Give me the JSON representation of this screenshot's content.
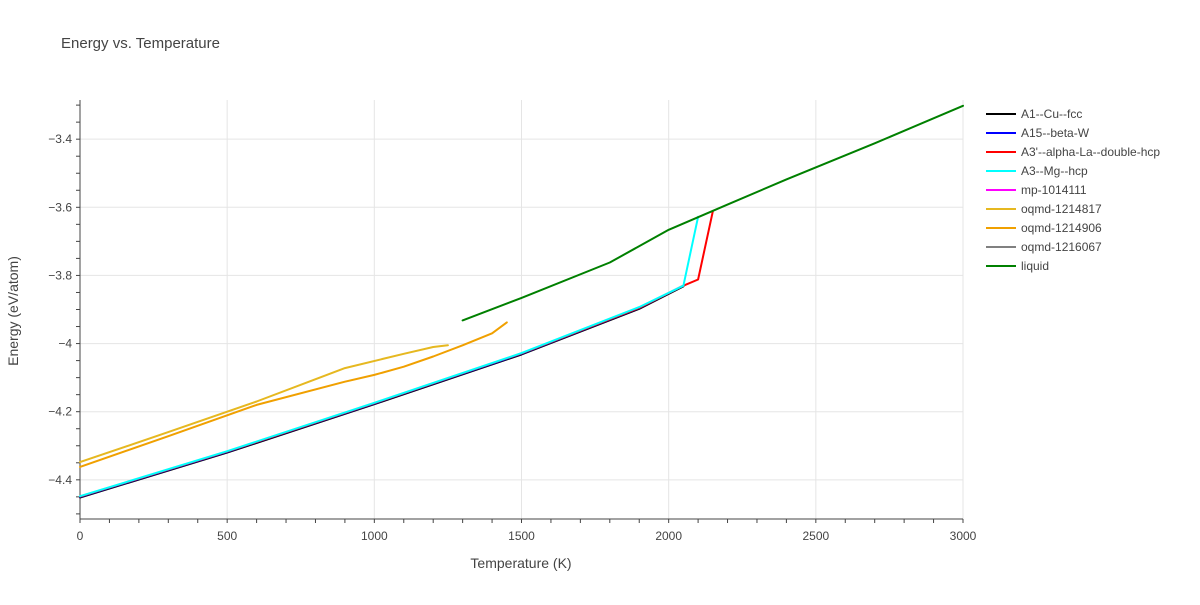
{
  "chart_data": {
    "type": "line",
    "title": "Energy vs. Temperature",
    "xlabel": "Temperature (K)",
    "ylabel": "Energy (eV/atom)",
    "xlim": [
      0,
      3000
    ],
    "ylim": [
      -4.515,
      -3.285
    ],
    "x_ticks": [
      0,
      500,
      1000,
      1500,
      2000,
      2500,
      3000
    ],
    "y_ticks": [
      -4.4,
      -4.2,
      -4,
      -3.8,
      -3.6,
      -3.4
    ],
    "x_tick_labels": [
      "0",
      "500",
      "1000",
      "1500",
      "2000",
      "2500",
      "3000"
    ],
    "y_tick_labels": [
      "−4.4",
      "−4.2",
      "−4",
      "−3.8",
      "−3.6",
      "−3.4"
    ],
    "grid": true,
    "legend_position": "right",
    "series": [
      {
        "name": "A1--Cu--fcc",
        "color": "#000000",
        "x": [
          0,
          500,
          1000,
          1500,
          1900,
          2050
        ],
        "y": [
          -4.452,
          -4.32,
          -4.178,
          -4.032,
          -3.898,
          -3.832
        ]
      },
      {
        "name": "A15--beta-W",
        "color": "#0000ff",
        "x": [
          0,
          500,
          1000,
          1500,
          1900,
          2050
        ],
        "y": [
          -4.45,
          -4.318,
          -4.176,
          -4.03,
          -3.896,
          -3.83
        ]
      },
      {
        "name": "A3'--alpha-La--double-hcp",
        "color": "#ff0000",
        "x": [
          0,
          500,
          1000,
          1500,
          1900,
          2050,
          2100,
          2150
        ],
        "y": [
          -4.449,
          -4.317,
          -4.175,
          -4.029,
          -3.895,
          -3.83,
          -3.812,
          -3.612
        ]
      },
      {
        "name": "A3--Mg--hcp",
        "color": "#00ffff",
        "x": [
          0,
          500,
          1000,
          1500,
          1900,
          2050,
          2100
        ],
        "y": [
          -4.448,
          -4.316,
          -4.174,
          -4.028,
          -3.893,
          -3.83,
          -3.628
        ]
      },
      {
        "name": "mp-1014111",
        "color": "#ff00ff",
        "x": [],
        "y": []
      },
      {
        "name": "oqmd-1214817",
        "color": "#e6b820",
        "x": [
          0,
          300,
          600,
          900,
          1100,
          1200,
          1250
        ],
        "y": [
          -4.348,
          -4.26,
          -4.17,
          -4.072,
          -4.03,
          -4.01,
          -4.005
        ]
      },
      {
        "name": "oqmd-1214906",
        "color": "#f0a000",
        "x": [
          0,
          300,
          600,
          900,
          1000,
          1100,
          1200,
          1300,
          1400,
          1450
        ],
        "y": [
          -4.362,
          -4.272,
          -4.18,
          -4.112,
          -4.092,
          -4.068,
          -4.038,
          -4.005,
          -3.97,
          -3.938
        ]
      },
      {
        "name": "oqmd-1216067",
        "color": "#808080",
        "x": [],
        "y": []
      },
      {
        "name": "liquid",
        "color": "#008000",
        "x": [
          1300,
          1500,
          1800,
          2000,
          2200,
          2400,
          2700,
          3000
        ],
        "y": [
          -3.932,
          -3.866,
          -3.762,
          -3.666,
          -3.592,
          -3.518,
          -3.412,
          -3.302
        ]
      }
    ]
  }
}
